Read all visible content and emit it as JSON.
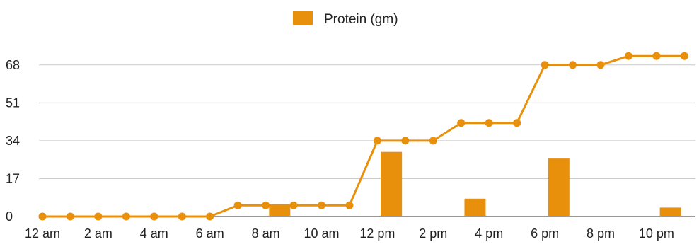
{
  "chart_data": {
    "type": "bar",
    "legend": {
      "label": "Protein (gm)",
      "position": "top",
      "color": "#e8900c"
    },
    "x_labels": [
      "12 am",
      "2 am",
      "4 am",
      "6 am",
      "8 am",
      "10 am",
      "12 pm",
      "2 pm",
      "4 pm",
      "6 pm",
      "8 pm",
      "10 pm"
    ],
    "hours": [
      0,
      1,
      2,
      3,
      4,
      5,
      6,
      7,
      8,
      9,
      10,
      11,
      12,
      13,
      14,
      15,
      16,
      17,
      18,
      19,
      20,
      21,
      22,
      23
    ],
    "series": [
      {
        "name": "Protein (gm)",
        "type": "bar",
        "values": [
          0,
          0,
          0,
          0,
          0,
          0,
          0,
          0,
          5,
          0,
          0,
          0,
          29,
          0,
          0,
          8,
          0,
          0,
          26,
          0,
          0,
          0,
          4,
          0
        ]
      },
      {
        "type": "line",
        "values": [
          0,
          0,
          0,
          0,
          0,
          0,
          0,
          5,
          5,
          5,
          5,
          5,
          34,
          34,
          34,
          42,
          42,
          42,
          68,
          68,
          68,
          72,
          72,
          72
        ]
      }
    ],
    "yticks": [
      0,
      17,
      34,
      51,
      68
    ],
    "ylim": [
      0,
      76
    ],
    "grid": true,
    "colors": {
      "accent": "#e8900c",
      "gridline": "#cccccc",
      "baseline": "#333333"
    }
  }
}
